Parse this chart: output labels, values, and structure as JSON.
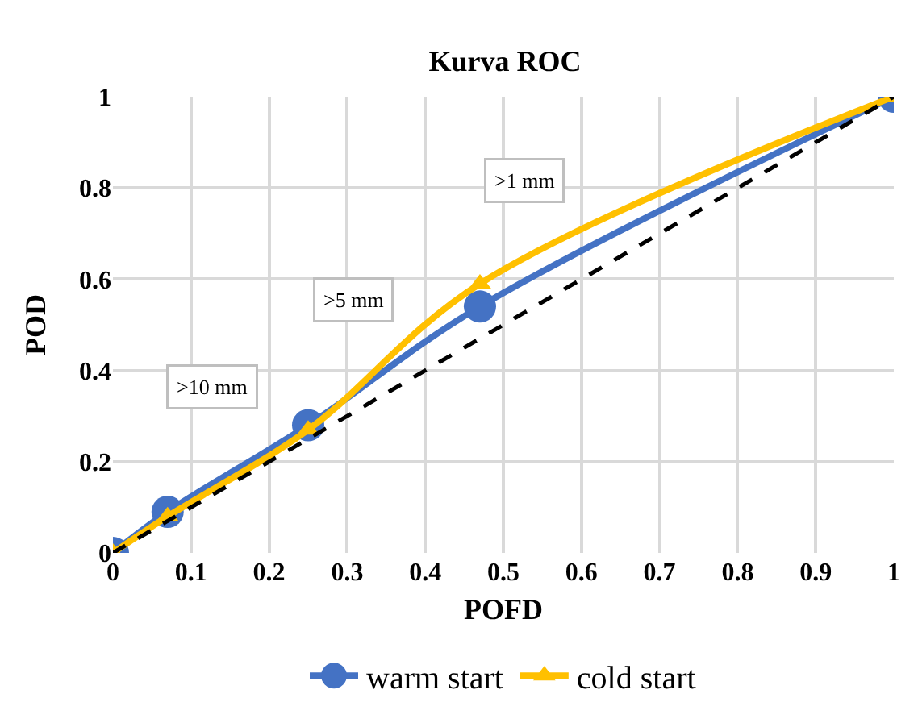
{
  "chart_data": {
    "type": "line",
    "title": "Kurva ROC",
    "xlabel": "POFD",
    "ylabel": "POD",
    "xlim": [
      0,
      1
    ],
    "xticks": [
      0,
      0.1,
      0.2,
      0.3,
      0.4,
      0.5,
      0.6,
      0.7,
      0.8,
      0.9,
      1
    ],
    "ylim": [
      0,
      1
    ],
    "yticks": [
      0,
      0.2,
      0.4,
      0.6,
      0.8,
      1
    ],
    "grid": true,
    "legend": "bottom",
    "series": [
      {
        "name": "warm start",
        "color": "#4472c4",
        "marker": "circle",
        "x": [
          0,
          0.07,
          0.25,
          0.47,
          1
        ],
        "values": [
          0,
          0.09,
          0.28,
          0.54,
          1
        ]
      },
      {
        "name": "cold start",
        "color": "#ffc000",
        "marker": "triangle",
        "x": [
          0,
          0.07,
          0.25,
          0.47,
          1
        ],
        "values": [
          0,
          0.08,
          0.27,
          0.59,
          1
        ]
      },
      {
        "color": "#000000",
        "marker": "none",
        "line_style": "dashed",
        "x": [
          0,
          1
        ],
        "values": [
          0,
          1
        ]
      }
    ],
    "annotations": [
      ">10 mm",
      ">5 mm",
      ">1 mm"
    ]
  }
}
